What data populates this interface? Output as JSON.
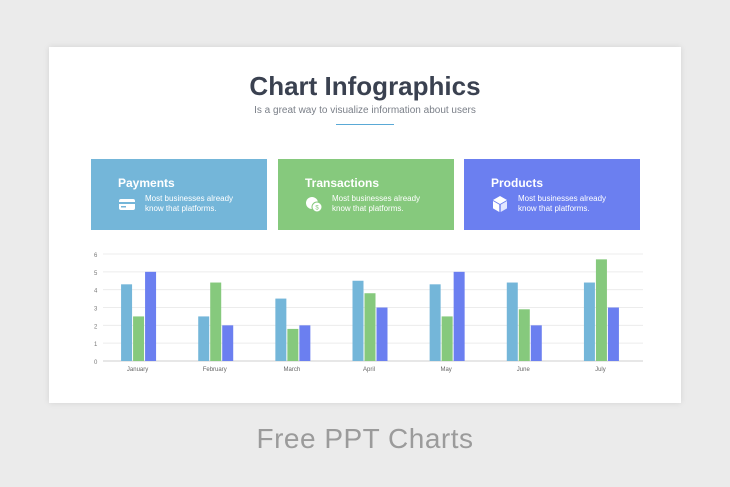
{
  "slide": {
    "title": "Chart Infographics",
    "subtitle": "Is a great way to visualize information about users",
    "accent_color": "#5aa9d6"
  },
  "cards": [
    {
      "title": "Payments",
      "text_line1": "Most businesses already",
      "text_line2": "know that platforms.",
      "icon": "wallet-icon",
      "color": "#74b6d9"
    },
    {
      "title": "Transactions",
      "text_line1": "Most businesses already",
      "text_line2": "know that platforms.",
      "icon": "coins-icon",
      "color": "#86c97d"
    },
    {
      "title": "Products",
      "text_line1": "Most businesses already",
      "text_line2": "know that platforms.",
      "icon": "box-icon",
      "color": "#6b7ff0"
    }
  ],
  "footer": {
    "text": "Free PPT Charts"
  },
  "chart_data": {
    "type": "bar",
    "categories": [
      "January",
      "February",
      "March",
      "April",
      "May",
      "June",
      "July"
    ],
    "series": [
      {
        "color": "#74b6d9",
        "values": [
          4.3,
          2.5,
          3.5,
          4.5,
          4.3,
          4.4,
          4.4
        ]
      },
      {
        "color": "#86c97d",
        "values": [
          2.5,
          4.4,
          1.8,
          3.8,
          2.5,
          2.9,
          5.7
        ]
      },
      {
        "color": "#6b7ff0",
        "values": [
          5.0,
          2.0,
          2.0,
          3.0,
          5.0,
          2.0,
          3.0
        ]
      }
    ],
    "yticks": [
      "0",
      "1",
      "2",
      "3",
      "4",
      "5",
      "6"
    ],
    "ylim": [
      0,
      6
    ],
    "grid": true,
    "title": "",
    "xlabel": "",
    "ylabel": ""
  }
}
